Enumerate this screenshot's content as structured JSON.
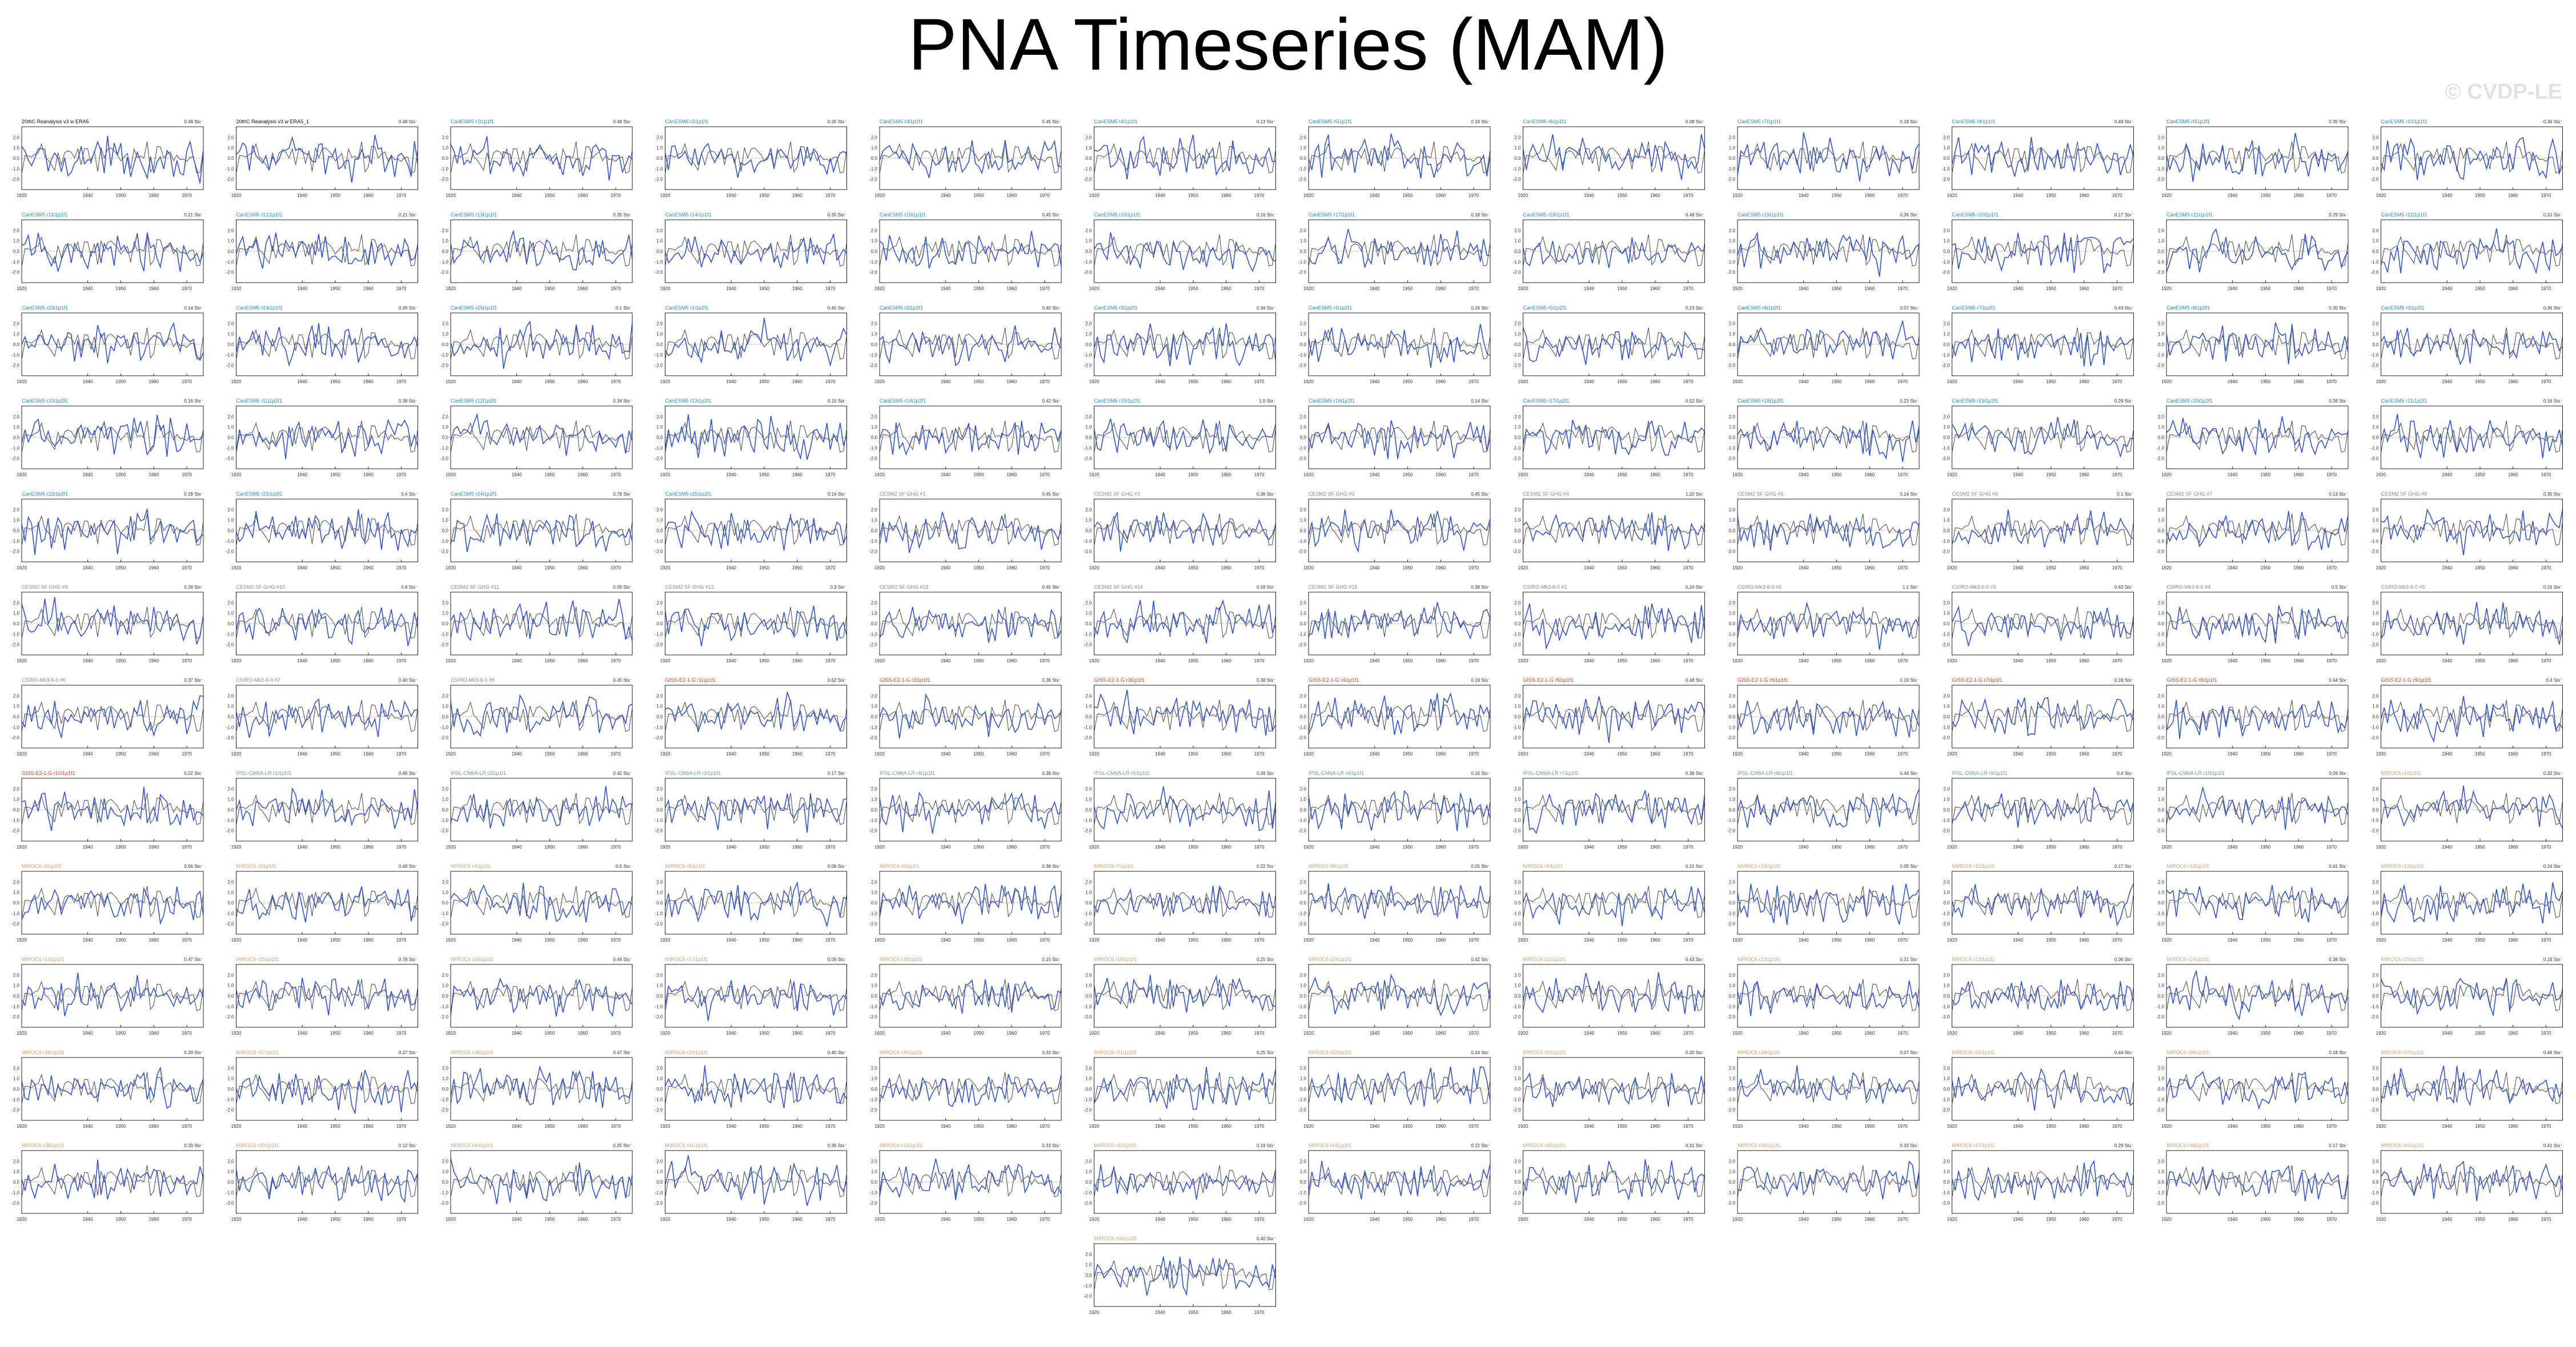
{
  "title": "PNA Timeseries (MAM)",
  "watermark": "© CVDP-LE",
  "colors": {
    "observed": "#555555",
    "simulated": "#3355cc",
    "zero_line": "#c08a6a",
    "cesm_label": "#2a8fc4",
    "gfdl_label": "#8a8a8a",
    "csiro_label": "#8a8a8a",
    "giss_label": "#cc4422",
    "ipsl_label": "#6a9ab8",
    "miroc_label": "#d9a070"
  },
  "chart_data": {
    "type": "line",
    "note_layout": "small-multiples grid",
    "xticks": [
      "1920",
      "1940",
      "1950",
      "1960",
      "1970"
    ],
    "yticks": [
      "2.0",
      "1.0",
      "0.0",
      "-1.0",
      "-2.0"
    ],
    "xlim": [
      1920,
      1975
    ],
    "ylim": [
      -3,
      3
    ],
    "panels": [
      {
        "label": "20thC Reanalysis v3 w ERA5",
        "trend": "0.48 Stx⁻"
      },
      {
        "label": "20thC Reanalysis v3 w ERA5_1",
        "trend": "0.48 Stx⁻"
      },
      {
        "label": "CanESM5 r1i1p1f1",
        "trend": "0.48 Stx⁻"
      },
      {
        "label": "CanESM5 r2i1p1f1",
        "trend": "0.35 Stx⁻"
      },
      {
        "label": "CanESM5 r3i1p1f1",
        "trend": "0.45 Stx⁻"
      },
      {
        "label": "CanESM5 r4i1p1f1",
        "trend": "0.13 Stx⁻"
      },
      {
        "label": "CanESM5 r5i1p1f1",
        "trend": "0.19 Stx⁻"
      },
      {
        "label": "CanESM5 r6i1p1f1",
        "trend": "0.08 Stx⁻"
      },
      {
        "label": "CanESM5 r7i1p1f1",
        "trend": "0.18 Stx⁻"
      },
      {
        "label": "CanESM5 r8i1p1f1",
        "trend": "0.49 Stx⁻"
      },
      {
        "label": "CanESM5 r9i1p1f1",
        "trend": "0.35 Stx⁻"
      },
      {
        "label": "CanESM5 r10i1p1f1",
        "trend": "0.36 Stx⁻"
      },
      {
        "label": "CanESM5 r11i1p1f1",
        "trend": "0.21 Stx⁻"
      },
      {
        "label": "CanESM5 r12i1p1f1",
        "trend": "0.21 Stx⁻"
      },
      {
        "label": "CanESM5 r13i1p1f1",
        "trend": "0.35 Stx⁻"
      },
      {
        "label": "CanESM5 r14i1p1f1",
        "trend": "0.35 Stx⁻"
      },
      {
        "label": "CanESM5 r15i1p1f1",
        "trend": "0.45 Stx⁻"
      },
      {
        "label": "CanESM5 r16i1p1f1",
        "trend": "0.16 Stx⁻"
      },
      {
        "label": "CanESM5 r17i1p1f1",
        "trend": "0.18 Stx⁻"
      },
      {
        "label": "CanESM5 r18i1p1f1",
        "trend": "0.48 Stx⁻"
      },
      {
        "label": "CanESM5 r19i1p1f1",
        "trend": "0.36 Stx⁻"
      },
      {
        "label": "CanESM5 r20i1p1f1",
        "trend": "0.17 Stx⁻"
      },
      {
        "label": "CanESM5 r21i1p1f1",
        "trend": "0.29 Stx⁻"
      },
      {
        "label": "CanESM5 r22i1p1f1",
        "trend": "0.31 Stx⁻"
      },
      {
        "label": "CanESM5 r23i1p1f1",
        "trend": "0.14 Stx⁻"
      },
      {
        "label": "CanESM5 r24i1p1f1",
        "trend": "0.36 Stx⁻"
      },
      {
        "label": "CanESM5 r25i1p1f1",
        "trend": "0.1 Stx⁻"
      },
      {
        "label": "CanESM5 r1i1p2f1",
        "trend": "0.45 Stx⁻"
      },
      {
        "label": "CanESM5 r2i1p2f1",
        "trend": "0.40 Stx⁻"
      },
      {
        "label": "CanESM5 r3i1p2f1",
        "trend": "0.34 Stx⁻"
      },
      {
        "label": "CanESM5 r4i1p2f1",
        "trend": "0.24 Stx⁻"
      },
      {
        "label": "CanESM5 r5i1p2f1",
        "trend": "0.23 Stx⁻"
      },
      {
        "label": "CanESM5 r6i1p2f1",
        "trend": "0.07 Stx⁻"
      },
      {
        "label": "CanESM5 r7i1p2f1",
        "trend": "0.43 Stx⁻"
      },
      {
        "label": "CanESM5 r8i1p2f1",
        "trend": "0.30 Stx⁻"
      },
      {
        "label": "CanESM5 r9i1p2f1",
        "trend": "0.36 Stx⁻"
      },
      {
        "label": "CanESM5 r10i1p2f1",
        "trend": "0.16 Stx⁻"
      },
      {
        "label": "CanESM5 r11i1p2f1",
        "trend": "0.38 Stx⁻"
      },
      {
        "label": "CanESM5 r12i1p2f1",
        "trend": "0.34 Stx⁻"
      },
      {
        "label": "CanESM5 r13i1p2f1",
        "trend": "0.10 Stx⁻"
      },
      {
        "label": "CanESM5 r14i1p2f1",
        "trend": "0.42 Stx⁻"
      },
      {
        "label": "CanESM5 r15i1p2f1",
        "trend": "1.0 Stx⁻"
      },
      {
        "label": "CanESM5 r16i1p2f1",
        "trend": "0.14 Stx⁻"
      },
      {
        "label": "CanESM5 r17i1p2f1",
        "trend": "0.52 Stx⁻"
      },
      {
        "label": "CanESM5 r18i1p2f1",
        "trend": "0.23 Stx⁻"
      },
      {
        "label": "CanESM5 r19i1p2f1",
        "trend": "0.29 Stx⁻"
      },
      {
        "label": "CanESM5 r20i1p2f1",
        "trend": "0.28 Stx⁻"
      },
      {
        "label": "CanESM5 r21i1p2f1",
        "trend": "0.16 Stx⁻"
      },
      {
        "label": "CanESM5 r22i1p2f1",
        "trend": "0.29 Stx⁻"
      },
      {
        "label": "CanESM5 r23i1p2f1",
        "trend": "0.4 Stx⁻"
      },
      {
        "label": "CanESM5 r24i1p2f1",
        "trend": "0.78 Stx⁻"
      },
      {
        "label": "CanESM5 r25i1p2f1",
        "trend": "0.14 Stx⁻"
      },
      {
        "label": "CESM2 SF GHG #1",
        "trend": "0.45 Stx⁻"
      },
      {
        "label": "CESM2 SF GHG #2",
        "trend": "0.36 Stx⁻"
      },
      {
        "label": "CESM2 SF GHG #3",
        "trend": "0.45 Stx⁻"
      },
      {
        "label": "CESM2 SF GHG #4",
        "trend": "1.20 Stx⁻"
      },
      {
        "label": "CESM2 SF GHG #5",
        "trend": "0.14 Stx⁻"
      },
      {
        "label": "CESM2 SF GHG #6",
        "trend": "0.1 Stx⁻"
      },
      {
        "label": "CESM2 SF GHG #7",
        "trend": "0.13 Stx⁻"
      },
      {
        "label": "CESM2 SF GHG #8",
        "trend": "0.35 Stx⁻"
      },
      {
        "label": "CESM2 SF GHG #9",
        "trend": "0.28 Stx⁻"
      },
      {
        "label": "CESM2 SF GHG #10",
        "trend": "0.4 Stx⁻"
      },
      {
        "label": "CESM2 SF GHG #11",
        "trend": "0.09 Stx⁻"
      },
      {
        "label": "CESM2 SF GHG #12",
        "trend": "0.3 Stx⁻"
      },
      {
        "label": "CESM2 SF GHG #13",
        "trend": "0.45 Stx⁻"
      },
      {
        "label": "CESM2 SF GHG #14",
        "trend": "0.18 Stx⁻"
      },
      {
        "label": "CESM2 SF GHG #15",
        "trend": "0.38 Stx⁻"
      },
      {
        "label": "CSIRO-Mk3-6-0 #1",
        "trend": "0.24 Stx⁻"
      },
      {
        "label": "CSIRO-Mk3-6-0 #2",
        "trend": "1.1 Stx⁻"
      },
      {
        "label": "CSIRO-Mk3-6-0 #3",
        "trend": "0.43 Stx⁻"
      },
      {
        "label": "CSIRO-Mk3-6-0 #4",
        "trend": "0.5 Stx⁻"
      },
      {
        "label": "CSIRO-Mk3-6-0 #5",
        "trend": "0.16 Stx⁻"
      },
      {
        "label": "CSIRO-Mk3-6-0 #6",
        "trend": "0.37 Stx⁻"
      },
      {
        "label": "CSIRO-Mk3-6-0 #7",
        "trend": "0.40 Stx⁻"
      },
      {
        "label": "CSIRO-Mk3-6-0 #8",
        "trend": "0.45 Stx⁻"
      },
      {
        "label": "GISS-E2-1-G r1i1p1f1",
        "trend": "0.62 Stx⁻"
      },
      {
        "label": "GISS-E2-1-G r2i1p1f1",
        "trend": "0.36 Stx⁻"
      },
      {
        "label": "GISS-E2-1-G r3i1p1f1",
        "trend": "0.38 Stx⁻"
      },
      {
        "label": "GISS-E2-1-G r4i1p1f1",
        "trend": "0.19 Stx⁻"
      },
      {
        "label": "GISS-E2-1-G r5i1p1f1",
        "trend": "0.48 Stx⁻"
      },
      {
        "label": "GISS-E2-1-G r6i1p1f1",
        "trend": "0.19 Stx⁻"
      },
      {
        "label": "GISS-E2-1-G r7i1p1f1",
        "trend": "0.18 Stx⁻"
      },
      {
        "label": "GISS-E2-1-G r8i1p1f1",
        "trend": "0.44 Stx⁻"
      },
      {
        "label": "GISS-E2-1-G r9i1p1f1",
        "trend": "0.4 Stx⁻"
      },
      {
        "label": "GISS-E2-1-G r10i1p1f1",
        "trend": "0.22 Stx⁻"
      },
      {
        "label": "IPSL-CM6A-LR r1i1p1f1",
        "trend": "0.46 Stx⁻"
      },
      {
        "label": "IPSL-CM6A-LR r2i1p1f1",
        "trend": "0.42 Stx⁻"
      },
      {
        "label": "IPSL-CM6A-LR r3i1p1f1",
        "trend": "0.17 Stx⁻"
      },
      {
        "label": "IPSL-CM6A-LR r4i1p1f1",
        "trend": "0.38 Stx⁻"
      },
      {
        "label": "IPSL-CM6A-LR r5i1p1f1",
        "trend": "0.26 Stx⁻"
      },
      {
        "label": "IPSL-CM6A-LR r6i1p1f1",
        "trend": "0.16 Stx⁻"
      },
      {
        "label": "IPSL-CM6A-LR r7i1p1f1",
        "trend": "0.36 Stx⁻"
      },
      {
        "label": "IPSL-CM6A-LR r8i1p1f1",
        "trend": "0.44 Stx⁻"
      },
      {
        "label": "IPSL-CM6A-LR r9i1p1f1",
        "trend": "0.4 Stx⁻"
      },
      {
        "label": "IPSL-CM6A-LR r10i1p1f1",
        "trend": "0.09 Stx⁻"
      },
      {
        "label": "MIROC6 r1i1p1f1",
        "trend": "0.32 Stx⁻"
      },
      {
        "label": "MIROC6 r2i1p1f1",
        "trend": "0.06 Stx⁻"
      },
      {
        "label": "MIROC6 r3i1p1f1",
        "trend": "0.48 Stx⁻"
      },
      {
        "label": "MIROC6 r4i1p1f1",
        "trend": "0.5 Stx⁻"
      },
      {
        "label": "MIROC6 r5i1p1f1",
        "trend": "0.06 Stx⁻"
      },
      {
        "label": "MIROC6 r6i1p1f1",
        "trend": "0.38 Stx⁻"
      },
      {
        "label": "MIROC6 r7i1p1f1",
        "trend": "0.22 Stx⁻"
      },
      {
        "label": "MIROC6 r8i1p1f1",
        "trend": "0.05 Stx⁻"
      },
      {
        "label": "MIROC6 r9i1p1f1",
        "trend": "0.21 Stx⁻"
      },
      {
        "label": "MIROC6 r10i1p1f1",
        "trend": "0.05 Stx⁻"
      },
      {
        "label": "MIROC6 r11i1p1f1",
        "trend": "0.17 Stx⁻"
      },
      {
        "label": "MIROC6 r12i1p1f1",
        "trend": "0.41 Stx⁻"
      },
      {
        "label": "MIROC6 r13i1p1f1",
        "trend": "0.24 Stx⁻"
      },
      {
        "label": "MIROC6 r14i1p1f1",
        "trend": "0.47 Stx⁻"
      },
      {
        "label": "MIROC6 r15i1p1f1",
        "trend": "0.78 Stx⁻"
      },
      {
        "label": "MIROC6 r16i1p1f1",
        "trend": "0.44 Stx⁻"
      },
      {
        "label": "MIROC6 r17i1p1f1",
        "trend": "0.09 Stx⁻"
      },
      {
        "label": "MIROC6 r18i1p1f1",
        "trend": "0.15 Stx⁻"
      },
      {
        "label": "MIROC6 r19i1p1f1",
        "trend": "0.25 Stx⁻"
      },
      {
        "label": "MIROC6 r20i1p1f1",
        "trend": "0.42 Stx⁻"
      },
      {
        "label": "MIROC6 r21i1p1f1",
        "trend": "0.43 Stx⁻"
      },
      {
        "label": "MIROC6 r22i1p1f1",
        "trend": "0.21 Stx⁻"
      },
      {
        "label": "MIROC6 r23i1p1f1",
        "trend": "0.36 Stx⁻"
      },
      {
        "label": "MIROC6 r24i1p1f1",
        "trend": "0.38 Stx⁻"
      },
      {
        "label": "MIROC6 r25i1p1f1",
        "trend": "0.16 Stx⁻"
      },
      {
        "label": "MIROC6 r26i1p1f1",
        "trend": "0.29 Stx⁻"
      },
      {
        "label": "MIROC6 r27i1p1f1",
        "trend": "0.27 Stx⁻"
      },
      {
        "label": "MIROC6 r28i1p1f1",
        "trend": "0.47 Stx⁻"
      },
      {
        "label": "MIROC6 r29i1p1f1",
        "trend": "0.40 Stx⁻"
      },
      {
        "label": "MIROC6 r30i1p1f1",
        "trend": "0.33 Stx⁻"
      },
      {
        "label": "MIROC6 r31i1p1f1",
        "trend": "0.25 Stx⁻"
      },
      {
        "label": "MIROC6 r32i1p1f1",
        "trend": "0.24 Stx⁻"
      },
      {
        "label": "MIROC6 r33i1p1f1",
        "trend": "0.20 Stx⁻"
      },
      {
        "label": "MIROC6 r34i1p1f1",
        "trend": "0.07 Stx⁻"
      },
      {
        "label": "MIROC6 r35i1p1f1",
        "trend": "0.44 Stx⁻"
      },
      {
        "label": "MIROC6 r36i1p1f1",
        "trend": "0.18 Stx⁻"
      },
      {
        "label": "MIROC6 r37i1p1f1",
        "trend": "0.46 Stx⁻"
      },
      {
        "label": "MIROC6 r38i1p1f1",
        "trend": "0.39 Stx⁻"
      },
      {
        "label": "MIROC6 r39i1p1f1",
        "trend": "0.12 Stx⁻"
      },
      {
        "label": "MIROC6 r40i1p1f1",
        "trend": "0.25 Stx⁻"
      },
      {
        "label": "MIROC6 r41i1p1f1",
        "trend": "0.36 Stx⁻"
      },
      {
        "label": "MIROC6 r42i1p1f1",
        "trend": "0.23 Stx⁻"
      },
      {
        "label": "MIROC6 r43i1p1f1",
        "trend": "0.19 Stx⁻"
      },
      {
        "label": "MIROC6 r44i1p1f1",
        "trend": "0.22 Stx⁻"
      },
      {
        "label": "MIROC6 r45i1p1f1",
        "trend": "0.31 Stx⁻"
      },
      {
        "label": "MIROC6 r46i1p1f1",
        "trend": "0.33 Stx⁻"
      },
      {
        "label": "MIROC6 r47i1p1f1",
        "trend": "0.29 Stx⁻"
      },
      {
        "label": "MIROC6 r48i1p1f1",
        "trend": "0.17 Stx⁻"
      },
      {
        "label": "MIROC6 r49i1p1f1",
        "trend": "0.41 Stx⁻"
      },
      {
        "label": "MIROC6 r50i1p1f1",
        "trend": "0.40 Stx⁻"
      }
    ]
  }
}
